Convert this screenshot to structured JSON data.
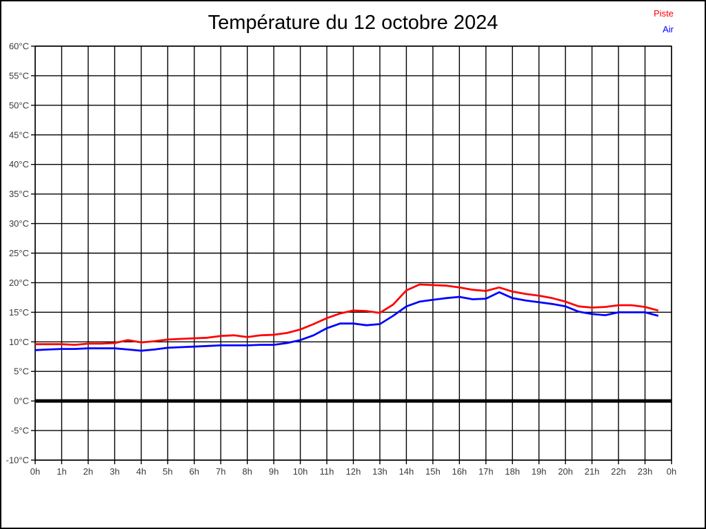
{
  "header": {
    "title": "Température du 12 octobre 2024"
  },
  "legend": {
    "position": "top-right",
    "items": [
      {
        "label": "Piste",
        "color": "#ff0000"
      },
      {
        "label": "Air",
        "color": "#0000ff"
      }
    ]
  },
  "chart_data": {
    "type": "line",
    "title": "Température du 12 octobre 2024",
    "xlabel": "",
    "ylabel": "",
    "xlim": [
      0,
      24
    ],
    "ylim": [
      -10,
      60
    ],
    "grid": true,
    "grid_color": "#000000",
    "background": "#ffffff",
    "legend_position": "top-right",
    "x_ticks": [
      0,
      1,
      2,
      3,
      4,
      5,
      6,
      7,
      8,
      9,
      10,
      11,
      12,
      13,
      14,
      15,
      16,
      17,
      18,
      19,
      20,
      21,
      22,
      23,
      24
    ],
    "x_tick_labels": [
      "0h",
      "1h",
      "2h",
      "3h",
      "4h",
      "5h",
      "6h",
      "7h",
      "8h",
      "9h",
      "10h",
      "11h",
      "12h",
      "13h",
      "14h",
      "15h",
      "16h",
      "17h",
      "18h",
      "19h",
      "20h",
      "21h",
      "22h",
      "23h",
      "0h"
    ],
    "y_ticks": [
      60,
      55,
      50,
      45,
      40,
      35,
      30,
      25,
      20,
      15,
      10,
      5,
      0,
      -5,
      -10
    ],
    "y_tick_labels": [
      "60°C",
      "55°C",
      "50°C",
      "45°C",
      "40°C",
      "35°C",
      "30°C",
      "25°C",
      "20°C",
      "15°C",
      "10°C",
      "5°C",
      "0°C",
      "-5°C",
      "-10°C"
    ],
    "zero_line": {
      "value": 0,
      "color": "#000000",
      "width": 5
    },
    "x": [
      0,
      0.5,
      1,
      1.5,
      2,
      2.5,
      3,
      3.5,
      4,
      4.5,
      5,
      5.5,
      6,
      6.5,
      7,
      7.5,
      8,
      8.5,
      9,
      9.5,
      10,
      10.5,
      11,
      11.5,
      12,
      12.5,
      13,
      13.5,
      14,
      14.5,
      15,
      15.5,
      16,
      16.5,
      17,
      17.5,
      18,
      18.5,
      19,
      19.5,
      20,
      20.5,
      21,
      21.5,
      22,
      22.5,
      23,
      23.5
    ],
    "series": [
      {
        "name": "Piste",
        "color": "#ff0000",
        "values": [
          9.6,
          9.6,
          9.6,
          9.5,
          9.7,
          9.7,
          9.8,
          10.3,
          9.9,
          10.1,
          10.4,
          10.5,
          10.6,
          10.7,
          11.0,
          11.1,
          10.8,
          11.1,
          11.2,
          11.5,
          12.1,
          13.0,
          14.0,
          14.8,
          15.3,
          15.2,
          14.9,
          16.3,
          18.7,
          19.7,
          19.6,
          19.5,
          19.2,
          18.8,
          18.6,
          19.2,
          18.5,
          18.1,
          17.8,
          17.4,
          16.8,
          16.0,
          15.8,
          15.9,
          16.2,
          16.2,
          15.9,
          15.3
        ]
      },
      {
        "name": "Air",
        "color": "#0000ff",
        "values": [
          8.6,
          8.7,
          8.8,
          8.8,
          8.9,
          8.9,
          8.9,
          8.7,
          8.5,
          8.7,
          9.0,
          9.1,
          9.2,
          9.3,
          9.4,
          9.4,
          9.4,
          9.5,
          9.5,
          9.8,
          10.3,
          11.1,
          12.3,
          13.1,
          13.1,
          12.8,
          13.0,
          14.4,
          16.0,
          16.8,
          17.1,
          17.4,
          17.6,
          17.2,
          17.3,
          18.4,
          17.4,
          17.0,
          16.7,
          16.4,
          16.0,
          15.1,
          14.7,
          14.5,
          15.0,
          15.0,
          15.0,
          14.4
        ]
      }
    ]
  }
}
